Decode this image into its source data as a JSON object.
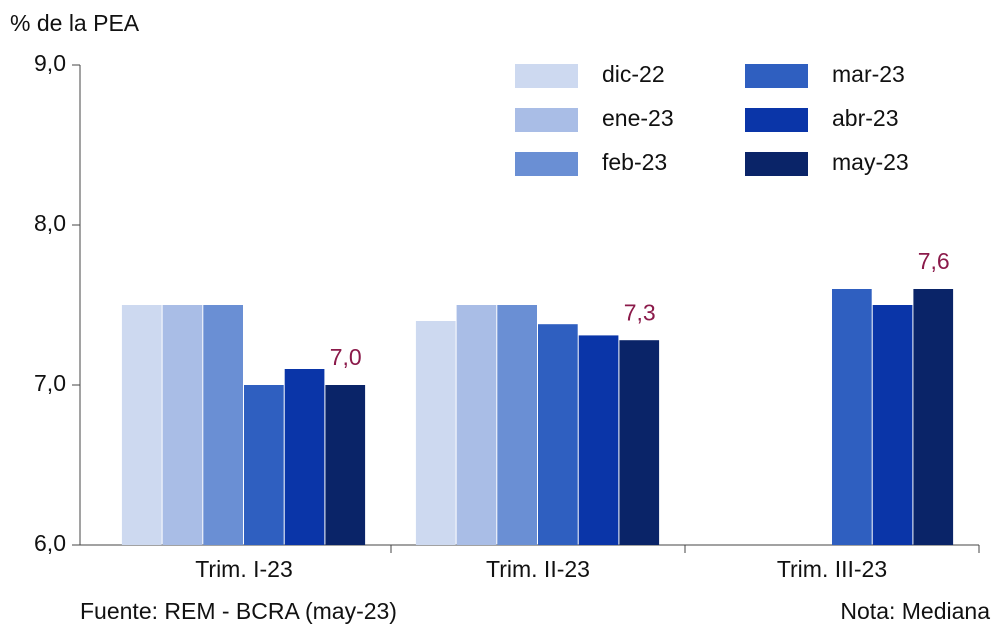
{
  "chart_data": {
    "type": "bar",
    "y_label": "% de la PEA",
    "source": "Fuente: REM - BCRA (may-23)",
    "note": "Nota: Mediana",
    "categories": [
      "Trim. I-23",
      "Trim. II-23",
      "Trim. III-23"
    ],
    "series": [
      {
        "name": "dic-22",
        "color": "#cdd9f0",
        "values": [
          7.5,
          7.4,
          null
        ]
      },
      {
        "name": "ene-23",
        "color": "#a9bde6",
        "values": [
          7.5,
          7.5,
          null
        ]
      },
      {
        "name": "feb-23",
        "color": "#6a8fd4",
        "values": [
          7.5,
          7.5,
          null
        ]
      },
      {
        "name": "mar-23",
        "color": "#2f5fc0",
        "values": [
          7.0,
          7.38,
          7.6
        ]
      },
      {
        "name": "abr-23",
        "color": "#0a35a8",
        "values": [
          7.1,
          7.31,
          7.5
        ]
      },
      {
        "name": "may-23",
        "color": "#0a2468",
        "values": [
          7.0,
          7.28,
          7.6
        ],
        "value_labels": [
          "7,0",
          "7,3",
          "7,6"
        ]
      }
    ],
    "ylim": [
      6,
      9
    ],
    "yticks": [
      {
        "value": 6,
        "label": "6,0"
      },
      {
        "value": 7,
        "label": "7,0"
      },
      {
        "value": 8,
        "label": "8,0"
      },
      {
        "value": 9,
        "label": "9,0"
      }
    ],
    "grid": false
  }
}
